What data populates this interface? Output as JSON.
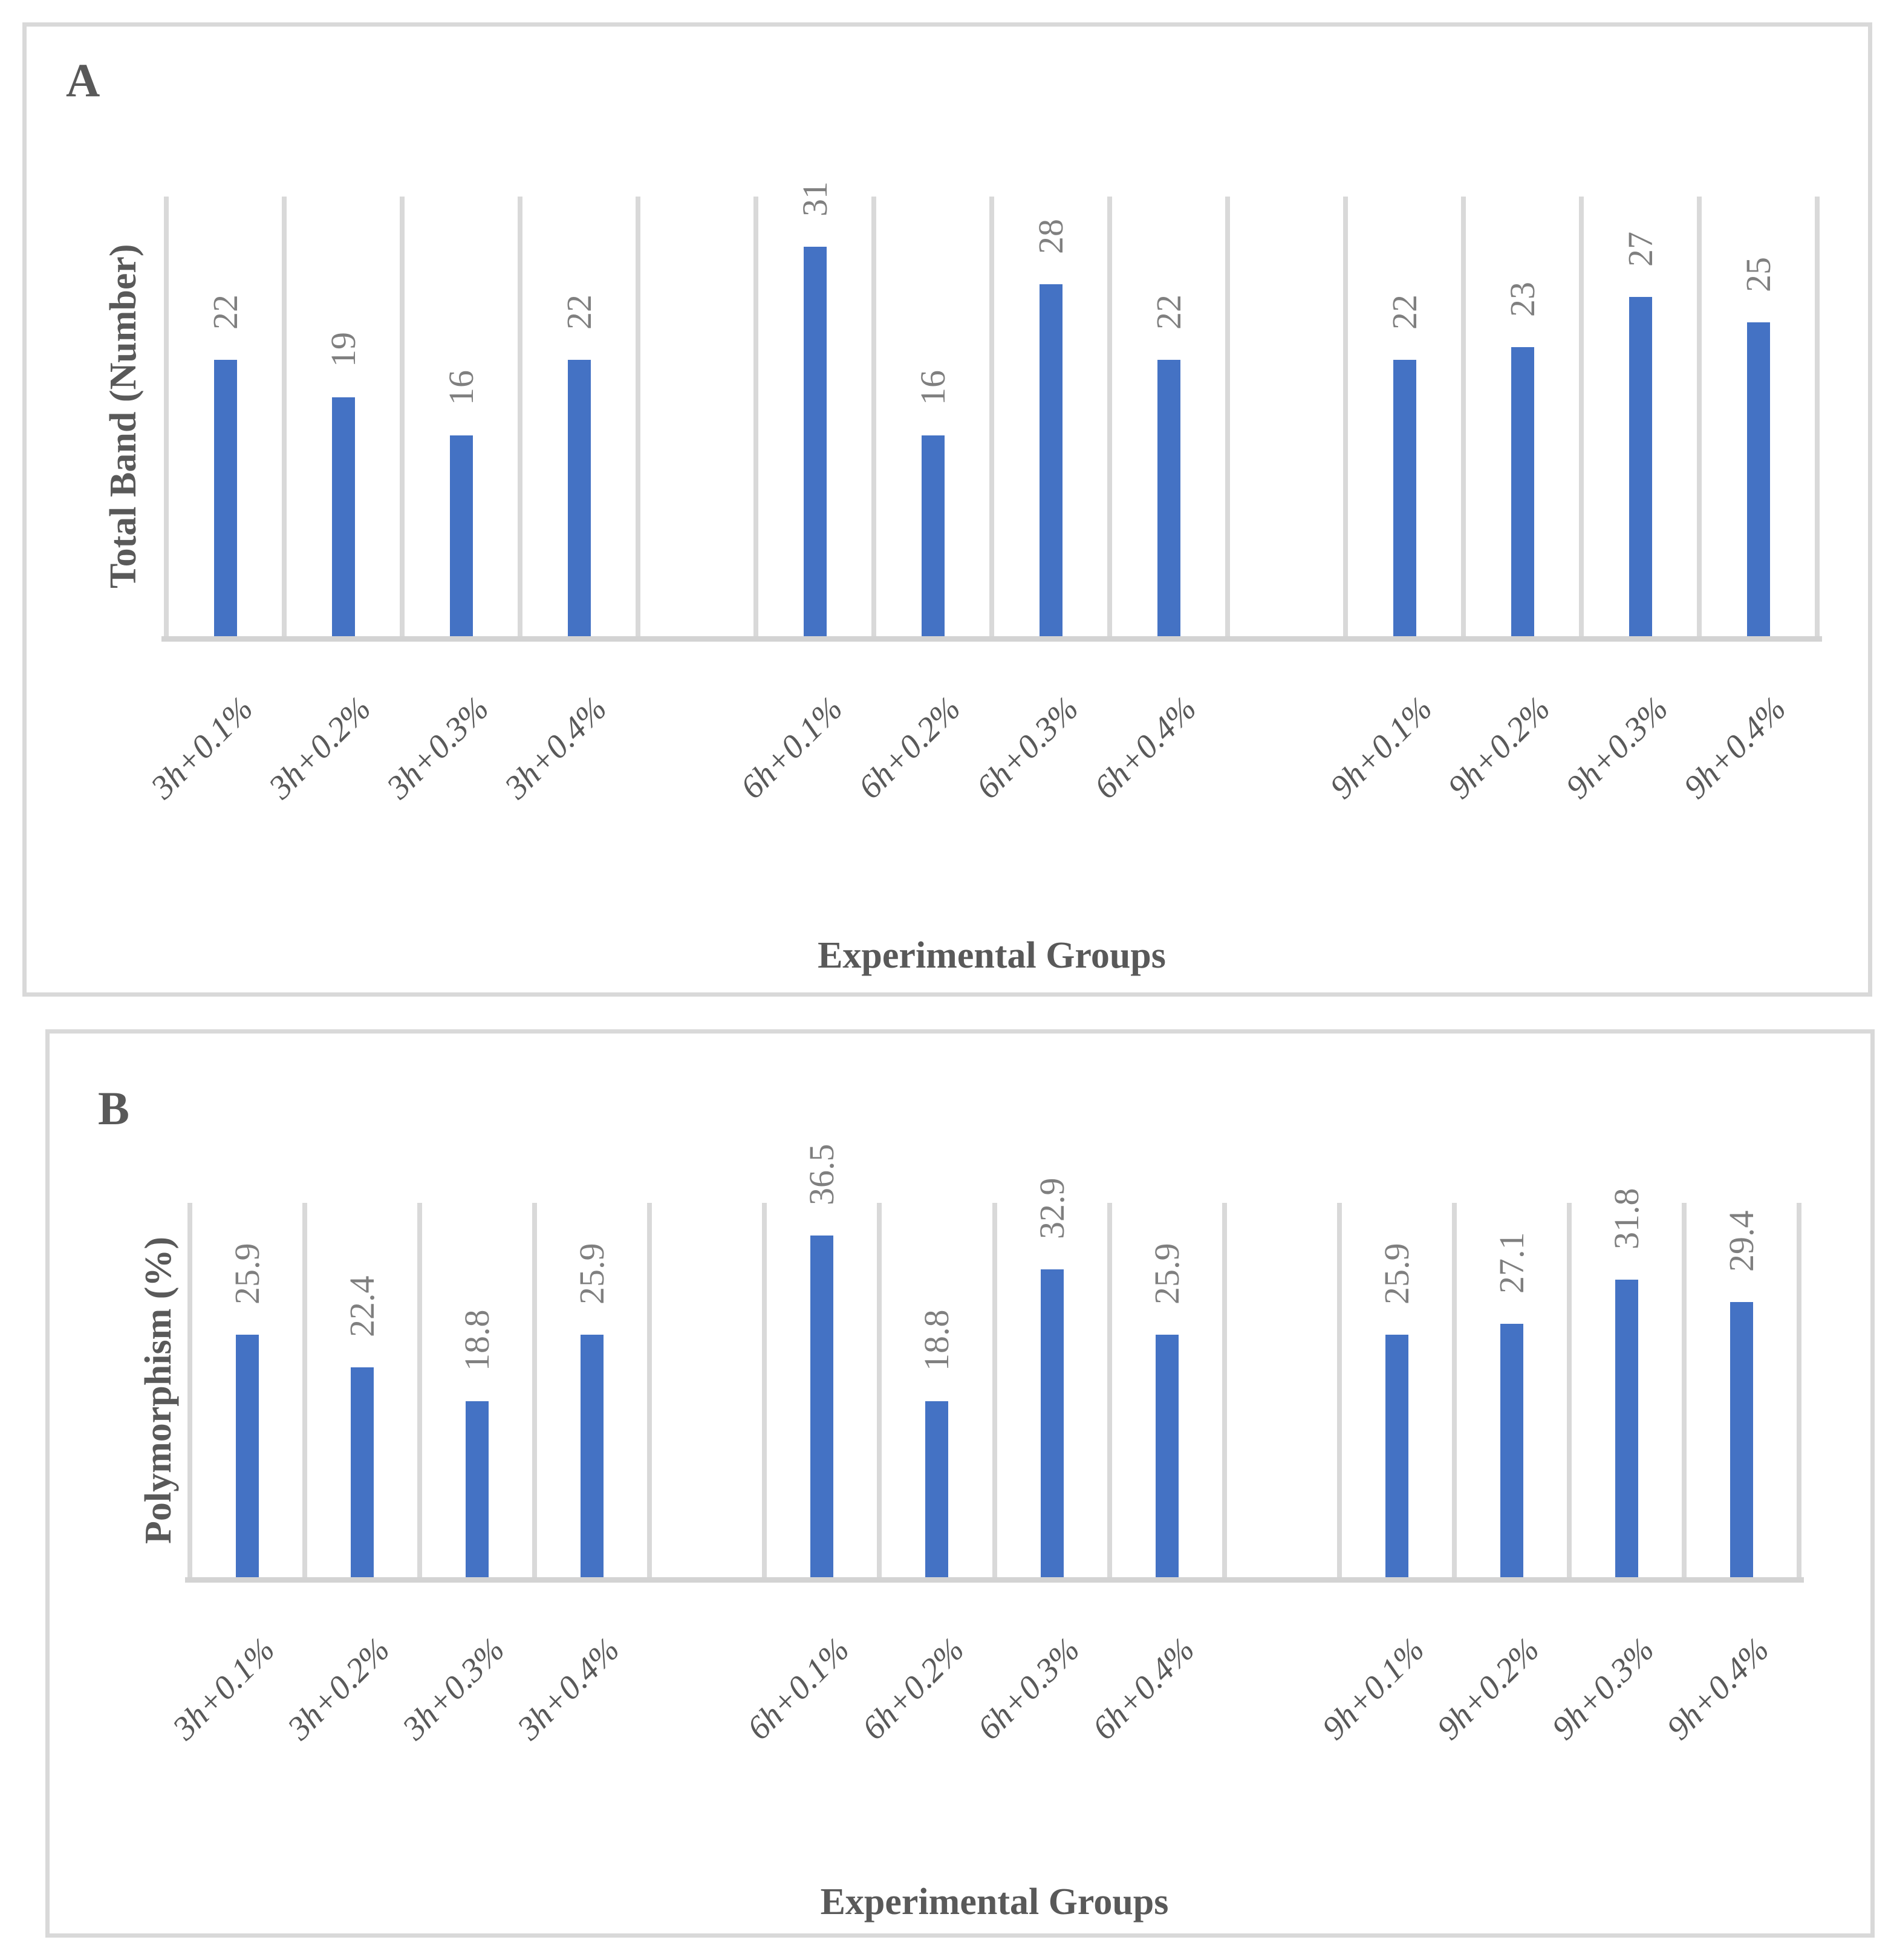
{
  "style": {
    "bar_color": "#4472C4",
    "gridline_color": "#D9D9D9",
    "axis_line_color": "#D3D3D3",
    "value_label_color": "#7F7F7F",
    "text_color": "#595959",
    "panel_border_color": "#D9D9D9",
    "background": "#FFFFFF"
  },
  "chart_data": [
    {
      "type": "bar",
      "panel_letter": "A",
      "title": "",
      "xlabel": "Experimental Groups",
      "ylabel": "Total Band (Number)",
      "categories": [
        "3h+0.1%",
        "3h+0.2%",
        "3h+0.3%",
        "3h+0.4%",
        "6h+0.1%",
        "6h+0.2%",
        "6h+0.3%",
        "6h+0.4%",
        "9h+0.1%",
        "9h+0.2%",
        "9h+0.3%",
        "9h+0.4%"
      ],
      "values": [
        22,
        19,
        16,
        22,
        31,
        16,
        28,
        22,
        22,
        23,
        27,
        25
      ],
      "value_labels": [
        "22",
        "19",
        "16",
        "22",
        "31",
        "16",
        "28",
        "22",
        "22",
        "23",
        "27",
        "25"
      ],
      "ylim": [
        0,
        35
      ],
      "y_tick_labels_shown": false,
      "grid": "vertical-only",
      "legend": "none",
      "cluster_size": 4,
      "cluster_gap_slots_after_category_index": [
        3,
        7
      ],
      "value_label_rotation_deg": -90,
      "tick_label_rotation_deg": -45,
      "bar_color": "#4472C4"
    },
    {
      "type": "bar",
      "panel_letter": "B",
      "title": "",
      "xlabel": "Experimental Groups",
      "ylabel": "Polymorphism (%)",
      "categories": [
        "3h+0.1%",
        "3h+0.2%",
        "3h+0.3%",
        "3h+0.4%",
        "6h+0.1%",
        "6h+0.2%",
        "6h+0.3%",
        "6h+0.4%",
        "9h+0.1%",
        "9h+0.2%",
        "9h+0.3%",
        "9h+0.4%"
      ],
      "values": [
        25.9,
        22.4,
        18.8,
        25.9,
        36.5,
        18.8,
        32.9,
        25.9,
        25.9,
        27.1,
        31.8,
        29.4
      ],
      "value_labels": [
        "25.9",
        "22.4",
        "18.8",
        "25.9",
        "36.5",
        "18.8",
        "32.9",
        "25.9",
        "25.9",
        "27.1",
        "31.8",
        "29.4"
      ],
      "ylim": [
        0,
        40
      ],
      "y_tick_labels_shown": false,
      "grid": "vertical-only",
      "legend": "none",
      "cluster_size": 4,
      "cluster_gap_slots_after_category_index": [
        3,
        7
      ],
      "value_label_rotation_deg": -90,
      "tick_label_rotation_deg": -45,
      "bar_color": "#4472C4"
    }
  ]
}
